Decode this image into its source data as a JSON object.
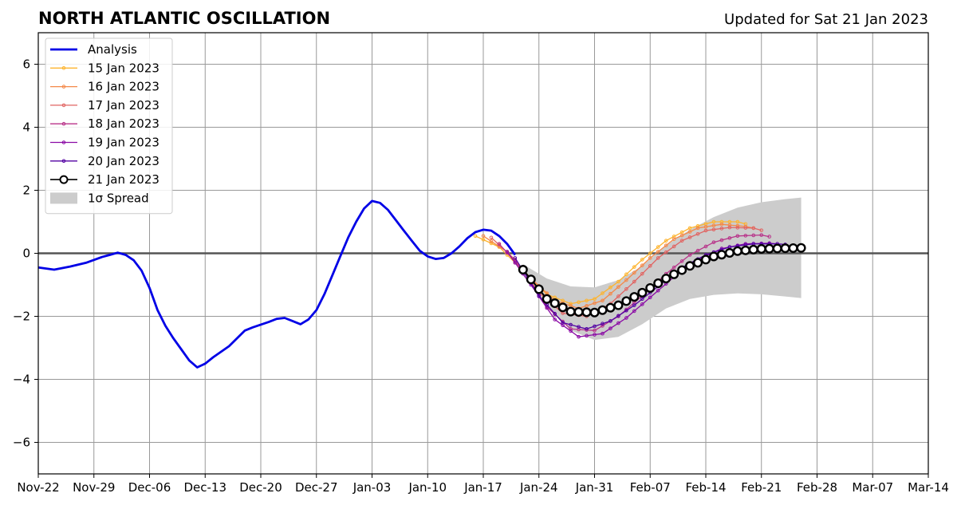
{
  "chart_data": {
    "type": "line",
    "title": "NORTH ATLANTIC OSCILLATION",
    "subtitle": "Updated for Sat 21 Jan 2023",
    "xlabel": "",
    "ylabel": "",
    "year": 2022,
    "x_ticks": [
      "Nov-22",
      "Nov-29",
      "Dec-06",
      "Dec-13",
      "Dec-20",
      "Dec-27",
      "Jan-03",
      "Jan-10",
      "Jan-17",
      "Jan-24",
      "Jan-31",
      "Feb-07",
      "Feb-14",
      "Feb-21",
      "Feb-28",
      "Mar-07",
      "Mar-14"
    ],
    "xlim": [
      "2022-11-22",
      "2023-03-14"
    ],
    "ylim": [
      -7,
      7
    ],
    "y_ticks": [
      -6,
      -4,
      -2,
      0,
      2,
      4,
      6
    ],
    "y_tick_labels": [
      "−6",
      "−4",
      "−2",
      "0",
      "2",
      "4",
      "6"
    ],
    "grid": true,
    "legend_position": "top-left",
    "colors": {
      "analysis": "#0000e6",
      "spread": "#cccccc",
      "zero_line": "#555555",
      "grid": "#999999"
    },
    "analysis": {
      "name": "Analysis",
      "points": [
        [
          "2022-11-22",
          -0.45
        ],
        [
          "2022-11-24",
          -0.52
        ],
        [
          "2022-11-26",
          -0.42
        ],
        [
          "2022-11-28",
          -0.3
        ],
        [
          "2022-11-30",
          -0.12
        ],
        [
          "2022-12-01",
          -0.05
        ],
        [
          "2022-12-02",
          0.02
        ],
        [
          "2022-12-03",
          -0.05
        ],
        [
          "2022-12-04",
          -0.22
        ],
        [
          "2022-12-05",
          -0.55
        ],
        [
          "2022-12-06",
          -1.1
        ],
        [
          "2022-12-07",
          -1.8
        ],
        [
          "2022-12-08",
          -2.3
        ],
        [
          "2022-12-09",
          -2.7
        ],
        [
          "2022-12-10",
          -3.05
        ],
        [
          "2022-12-11",
          -3.4
        ],
        [
          "2022-12-12",
          -3.62
        ],
        [
          "2022-12-13",
          -3.5
        ],
        [
          "2022-12-14",
          -3.3
        ],
        [
          "2022-12-16",
          -2.95
        ],
        [
          "2022-12-18",
          -2.45
        ],
        [
          "2022-12-19",
          -2.35
        ],
        [
          "2022-12-21",
          -2.18
        ],
        [
          "2022-12-22",
          -2.08
        ],
        [
          "2022-12-23",
          -2.05
        ],
        [
          "2022-12-24",
          -2.15
        ],
        [
          "2022-12-25",
          -2.25
        ],
        [
          "2022-12-26",
          -2.1
        ],
        [
          "2022-12-27",
          -1.8
        ],
        [
          "2022-12-28",
          -1.3
        ],
        [
          "2022-12-29",
          -0.7
        ],
        [
          "2022-12-30",
          -0.1
        ],
        [
          "2022-12-31",
          0.5
        ],
        [
          "2023-01-01",
          1.0
        ],
        [
          "2023-01-02",
          1.42
        ],
        [
          "2023-01-03",
          1.66
        ],
        [
          "2023-01-04",
          1.6
        ],
        [
          "2023-01-05",
          1.38
        ],
        [
          "2023-01-06",
          1.05
        ],
        [
          "2023-01-07",
          0.72
        ],
        [
          "2023-01-08",
          0.4
        ],
        [
          "2023-01-09",
          0.08
        ],
        [
          "2023-01-10",
          -0.1
        ],
        [
          "2023-01-11",
          -0.18
        ],
        [
          "2023-01-12",
          -0.15
        ],
        [
          "2023-01-13",
          0.0
        ],
        [
          "2023-01-14",
          0.22
        ],
        [
          "2023-01-15",
          0.48
        ],
        [
          "2023-01-16",
          0.67
        ],
        [
          "2023-01-17",
          0.75
        ],
        [
          "2023-01-18",
          0.72
        ],
        [
          "2023-01-19",
          0.55
        ],
        [
          "2023-01-20",
          0.3
        ],
        [
          "2023-01-21",
          -0.05
        ]
      ]
    },
    "spread": {
      "name": "1σ Spread",
      "upper": [
        [
          "2023-01-22",
          -0.35
        ],
        [
          "2023-01-25",
          -0.8
        ],
        [
          "2023-01-28",
          -1.05
        ],
        [
          "2023-01-31",
          -1.08
        ],
        [
          "2023-02-03",
          -0.85
        ],
        [
          "2023-02-06",
          -0.4
        ],
        [
          "2023-02-09",
          0.25
        ],
        [
          "2023-02-12",
          0.75
        ],
        [
          "2023-02-15",
          1.15
        ],
        [
          "2023-02-18",
          1.45
        ],
        [
          "2023-02-21",
          1.62
        ],
        [
          "2023-02-24",
          1.72
        ],
        [
          "2023-02-26",
          1.77
        ]
      ],
      "lower": [
        [
          "2023-01-22",
          -0.7
        ],
        [
          "2023-01-25",
          -1.7
        ],
        [
          "2023-01-28",
          -2.45
        ],
        [
          "2023-01-31",
          -2.75
        ],
        [
          "2023-02-03",
          -2.65
        ],
        [
          "2023-02-06",
          -2.25
        ],
        [
          "2023-02-09",
          -1.75
        ],
        [
          "2023-02-12",
          -1.45
        ],
        [
          "2023-02-15",
          -1.32
        ],
        [
          "2023-02-18",
          -1.27
        ],
        [
          "2023-02-21",
          -1.3
        ],
        [
          "2023-02-24",
          -1.37
        ],
        [
          "2023-02-26",
          -1.42
        ]
      ]
    },
    "forecasts": [
      {
        "name": "15 Jan 2023",
        "color": "#fdb42f",
        "points": [
          [
            "2023-01-16",
            0.55
          ],
          [
            "2023-01-19",
            0.2
          ],
          [
            "2023-01-22",
            -0.55
          ],
          [
            "2023-01-25",
            -1.3
          ],
          [
            "2023-01-28",
            -1.6
          ],
          [
            "2023-01-31",
            -1.45
          ],
          [
            "2023-02-03",
            -0.9
          ],
          [
            "2023-02-06",
            -0.2
          ],
          [
            "2023-02-09",
            0.4
          ],
          [
            "2023-02-12",
            0.8
          ],
          [
            "2023-02-15",
            1.0
          ],
          [
            "2023-02-18",
            1.0
          ],
          [
            "2023-02-19",
            0.93
          ]
        ]
      },
      {
        "name": "16 Jan 2023",
        "color": "#f48849",
        "points": [
          [
            "2023-01-17",
            0.55
          ],
          [
            "2023-01-20",
            0.05
          ],
          [
            "2023-01-23",
            -0.8
          ],
          [
            "2023-01-26",
            -1.5
          ],
          [
            "2023-01-29",
            -1.75
          ],
          [
            "2023-02-01",
            -1.5
          ],
          [
            "2023-02-04",
            -0.85
          ],
          [
            "2023-02-07",
            -0.15
          ],
          [
            "2023-02-10",
            0.45
          ],
          [
            "2023-02-13",
            0.8
          ],
          [
            "2023-02-16",
            0.92
          ],
          [
            "2023-02-19",
            0.85
          ],
          [
            "2023-02-20",
            0.8
          ]
        ]
      },
      {
        "name": "17 Jan 2023",
        "color": "#e16462",
        "points": [
          [
            "2023-01-18",
            0.5
          ],
          [
            "2023-01-21",
            -0.2
          ],
          [
            "2023-01-24",
            -1.25
          ],
          [
            "2023-01-27",
            -1.9
          ],
          [
            "2023-01-30",
            -2.0
          ],
          [
            "2023-02-02",
            -1.6
          ],
          [
            "2023-02-05",
            -0.9
          ],
          [
            "2023-02-08",
            -0.15
          ],
          [
            "2023-02-11",
            0.4
          ],
          [
            "2023-02-14",
            0.72
          ],
          [
            "2023-02-17",
            0.82
          ],
          [
            "2023-02-20",
            0.8
          ],
          [
            "2023-02-21",
            0.73
          ]
        ]
      },
      {
        "name": "18 Jan 2023",
        "color": "#b83289",
        "points": [
          [
            "2023-01-19",
            0.3
          ],
          [
            "2023-01-22",
            -0.55
          ],
          [
            "2023-01-25",
            -1.7
          ],
          [
            "2023-01-28",
            -2.4
          ],
          [
            "2023-01-31",
            -2.45
          ],
          [
            "2023-02-03",
            -2.0
          ],
          [
            "2023-02-06",
            -1.35
          ],
          [
            "2023-02-09",
            -0.65
          ],
          [
            "2023-02-12",
            -0.05
          ],
          [
            "2023-02-15",
            0.35
          ],
          [
            "2023-02-18",
            0.55
          ],
          [
            "2023-02-21",
            0.58
          ],
          [
            "2023-02-22",
            0.53
          ]
        ]
      },
      {
        "name": "19 Jan 2023",
        "color": "#8b0aa5",
        "points": [
          [
            "2023-01-20",
            0.05
          ],
          [
            "2023-01-23",
            -1.0
          ],
          [
            "2023-01-26",
            -2.1
          ],
          [
            "2023-01-29",
            -2.65
          ],
          [
            "2023-02-01",
            -2.55
          ],
          [
            "2023-02-04",
            -2.05
          ],
          [
            "2023-02-07",
            -1.4
          ],
          [
            "2023-02-10",
            -0.75
          ],
          [
            "2023-02-13",
            -0.2
          ],
          [
            "2023-02-16",
            0.15
          ],
          [
            "2023-02-19",
            0.3
          ],
          [
            "2023-02-22",
            0.32
          ],
          [
            "2023-02-23",
            0.3
          ]
        ]
      },
      {
        "name": "20 Jan 2023",
        "color": "#5302a3",
        "points": [
          [
            "2023-01-21",
            -0.15
          ],
          [
            "2023-01-24",
            -1.35
          ],
          [
            "2023-01-27",
            -2.2
          ],
          [
            "2023-01-30",
            -2.4
          ],
          [
            "2023-02-02",
            -2.15
          ],
          [
            "2023-02-05",
            -1.65
          ],
          [
            "2023-02-08",
            -1.05
          ],
          [
            "2023-02-11",
            -0.45
          ],
          [
            "2023-02-14",
            -0.05
          ],
          [
            "2023-02-17",
            0.2
          ],
          [
            "2023-02-20",
            0.3
          ],
          [
            "2023-02-23",
            0.3
          ],
          [
            "2023-02-24",
            0.28
          ]
        ]
      },
      {
        "name": "21 Jan 2023",
        "color": "#000000",
        "points": [
          [
            "2023-01-22",
            -0.52
          ],
          [
            "2023-01-25",
            -1.45
          ],
          [
            "2023-01-28",
            -1.85
          ],
          [
            "2023-01-31",
            -1.88
          ],
          [
            "2023-02-03",
            -1.65
          ],
          [
            "2023-02-06",
            -1.25
          ],
          [
            "2023-02-09",
            -0.8
          ],
          [
            "2023-02-12",
            -0.4
          ],
          [
            "2023-02-15",
            -0.1
          ],
          [
            "2023-02-18",
            0.07
          ],
          [
            "2023-02-21",
            0.14
          ],
          [
            "2023-02-24",
            0.16
          ],
          [
            "2023-02-26",
            0.17
          ]
        ]
      }
    ]
  }
}
